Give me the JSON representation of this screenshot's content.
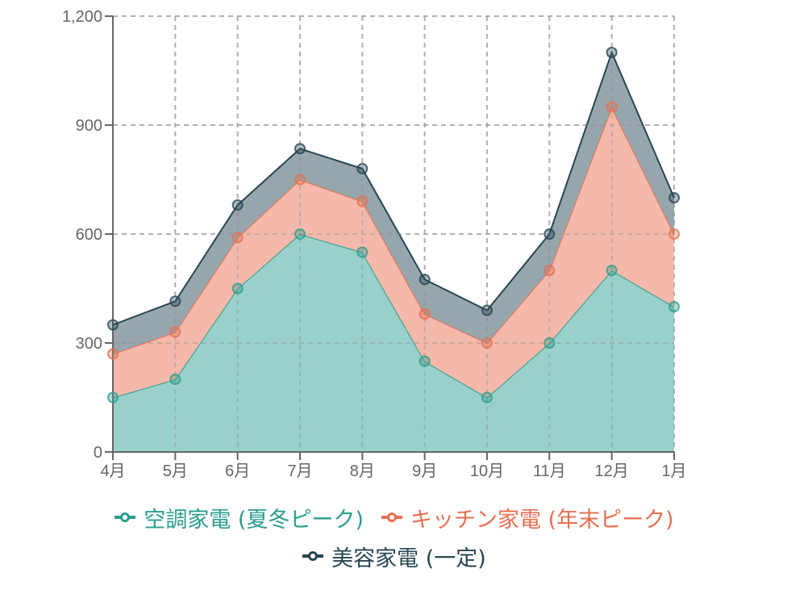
{
  "chart_data": {
    "type": "area",
    "stacked": true,
    "title": "",
    "xlabel": "",
    "ylabel": "",
    "categories": [
      "4月",
      "5月",
      "6月",
      "7月",
      "8月",
      "9月",
      "10月",
      "11月",
      "12月",
      "1月"
    ],
    "ylim": [
      0,
      1200
    ],
    "yticks": [
      0,
      300,
      600,
      900,
      1200
    ],
    "ytick_labels": [
      "0",
      "300",
      "600",
      "900",
      "1,200"
    ],
    "grid": true,
    "legend_position": "bottom",
    "series": [
      {
        "name": "空調家電 (夏冬ピーク)",
        "color": "#2a9d8f",
        "fill": "#99d0c9",
        "values": [
          150,
          200,
          450,
          600,
          550,
          250,
          150,
          300,
          500,
          400
        ]
      },
      {
        "name": "キッチン家電 (年末ピーク)",
        "color": "#e76f51",
        "fill": "#f4b9aa",
        "values": [
          120,
          130,
          140,
          150,
          140,
          130,
          150,
          200,
          450,
          200
        ]
      },
      {
        "name": "美容家電 (一定)",
        "color": "#264653",
        "fill": "#97a6ad",
        "values": [
          80,
          85,
          90,
          85,
          90,
          95,
          90,
          100,
          150,
          100
        ]
      }
    ]
  },
  "legend": {
    "items": [
      {
        "label": "空調家電 (夏冬ピーク)",
        "color": "#2a9d8f"
      },
      {
        "label": "キッチン家電 (年末ピーク)",
        "color": "#e76f51"
      },
      {
        "label": "美容家電 (一定)",
        "color": "#264653"
      }
    ]
  }
}
